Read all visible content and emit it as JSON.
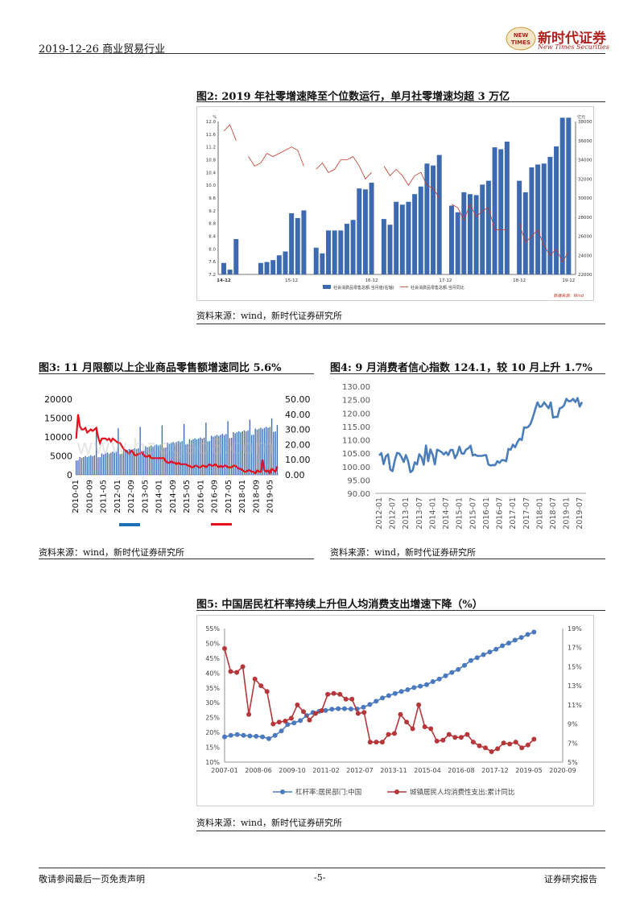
{
  "header": {
    "date_industry": "2019-12-26  商业贸易行业",
    "logo_cn": "新时代证券",
    "logo_en": "New Times Securities",
    "logo_badge": "NEW TIMES"
  },
  "fig2": {
    "title": "图2:    2019 年社零增速降至个位数运行，单月社零增速均超 3 万亿",
    "source": "资料来源：wind，新时代证券研究所",
    "inner_source": "数据来源：Wind",
    "chart_data": {
      "type": "bar",
      "left_axis": {
        "min": 7.2,
        "max": 12.0,
        "ticks": [
          "12.0",
          "11.6",
          "11.2",
          "10.8",
          "10.4",
          "10.0",
          "9.6",
          "9.2",
          "8.8",
          "8.4",
          "8.0",
          "7.6",
          "7.2"
        ],
        "unit_top": "%"
      },
      "right_axis": {
        "min": 22000,
        "max": 38000,
        "ticks": [
          "38000",
          "36000",
          "34000",
          "32000",
          "30000",
          "28000",
          "26000",
          "24000",
          "22000"
        ],
        "unit_top": "亿元"
      },
      "x_ticks": [
        "14-12",
        "15-12",
        "16-12",
        "17-12",
        "18-12",
        "19-12"
      ],
      "legend": [
        "社会消费品零售总额:当月值(右轴)",
        "社会消费品零售总额:当月同比"
      ],
      "bars": [
        23200,
        22500,
        25700,
        null,
        21900,
        21500,
        23200,
        23300,
        23500,
        24000,
        24400,
        28400,
        27900,
        28700,
        null,
        24800,
        24200,
        26600,
        26600,
        26600,
        27300,
        27700,
        31000,
        30900,
        31600,
        null,
        27800,
        27200,
        29600,
        29300,
        29600,
        30400,
        31200,
        33600,
        33400,
        34500,
        null,
        29200,
        28500,
        30600,
        30400,
        30300,
        31400,
        31800,
        35300,
        35100,
        35900,
        null,
        31800,
        30600,
        33200,
        33500,
        33600,
        34300,
        35400,
        38400,
        38400
      ],
      "line": [
        11.7,
        11.9,
        11.4,
        null,
        10.9,
        10.6,
        10.7,
        11.0,
        10.9,
        11.0,
        11.1,
        11.2,
        11.1,
        10.6,
        null,
        10.5,
        10.7,
        10.4,
        10.5,
        10.8,
        10.8,
        10.9,
        10.6,
        10.2,
        10.4,
        null,
        10.6,
        10.3,
        10.5,
        10.3,
        10.0,
        10.3,
        10.4,
        10.0,
        9.9,
        9.6,
        null,
        9.4,
        9.3,
        8.9,
        9.4,
        9.0,
        9.2,
        9.3,
        8.6,
        8.6,
        8.6,
        null,
        8.8,
        8.2,
        8.4,
        8.6,
        8.1,
        7.8,
        8.0,
        7.6,
        7.9
      ]
    }
  },
  "fig3": {
    "title": "图3:    11 月限额以上企业商品零售额增速同比 5.6%",
    "source": "资料来源：wind，新时代证券研究所",
    "watermark": "www.baogao8.com",
    "chart_data": {
      "type": "bar",
      "left_axis": {
        "min": 0,
        "max": 20000,
        "ticks": [
          "20000",
          "15000",
          "10000",
          "5000",
          "0"
        ]
      },
      "right_axis": {
        "min": 0,
        "max": 50,
        "ticks": [
          "50.00",
          "40.00",
          "30.00",
          "20.00",
          "10.00",
          "0.00"
        ]
      },
      "x_ticks": [
        "2010-01",
        "2010-09",
        "2011-05",
        "2012-01",
        "2012-09",
        "2013-05",
        "2014-01",
        "2014-09",
        "2015-05",
        "2016-01",
        "2016-09",
        "2017-05",
        "2018-01",
        "2018-09",
        "2019-05"
      ],
      "bars_monthly_summary": {
        "start": 4200,
        "end": 12800,
        "peak": 16500
      },
      "line": [
        24,
        40,
        32,
        30,
        30,
        31,
        28,
        29,
        30,
        29,
        30,
        31,
        25,
        21,
        24,
        24,
        24,
        23,
        24,
        22,
        24,
        23,
        22,
        21,
        21,
        19,
        17,
        16,
        15,
        14,
        16,
        15,
        13,
        13,
        14,
        14,
        15,
        13,
        12,
        12,
        13,
        11,
        11,
        11,
        11,
        11,
        11,
        11,
        11,
        9,
        8,
        8,
        9,
        8,
        8,
        7,
        8,
        7,
        7,
        7,
        7,
        6,
        6,
        5,
        5,
        6,
        6,
        5,
        5,
        6,
        6,
        5,
        6,
        7,
        6,
        6,
        7,
        6,
        5,
        6,
        5,
        6,
        6,
        5,
        5,
        5,
        6,
        6,
        5,
        4,
        4,
        3,
        2,
        2,
        3,
        3,
        2,
        2,
        1,
        3,
        2,
        2,
        10,
        3,
        2,
        3,
        1,
        4,
        3,
        2,
        5.6
      ]
    }
  },
  "fig4": {
    "title": "图4:    9 月消费者信心指数 124.1，较 10 月上升 1.7%",
    "source": "资料来源：wind，新时代证券研究所",
    "chart_data": {
      "type": "line",
      "y_axis": {
        "min": 90,
        "max": 130,
        "ticks": [
          "130.00",
          "125.00",
          "120.00",
          "115.00",
          "110.00",
          "105.00",
          "100.00",
          "95.00",
          "90.00"
        ]
      },
      "x_ticks": [
        "2012-01",
        "2012-07",
        "2013-01",
        "2013-07",
        "2014-01",
        "2014-07",
        "2015-01",
        "2015-07",
        "2016-01",
        "2016-07",
        "2017-01",
        "2017-07",
        "2018-01",
        "2018-07",
        "2019-01",
        "2019-07"
      ],
      "values": [
        104.2,
        105.0,
        100.9,
        103.8,
        104.6,
        98.9,
        98.3,
        102.2,
        105.1,
        104.9,
        103.6,
        101.7,
        104.3,
        102.0,
        97.9,
        98.5,
        101.6,
        100.8,
        104.6,
        103.5,
        100.7,
        107.9,
        102.0,
        106.4,
        104.4,
        100.8,
        106.3,
        105.9,
        105.4,
        104.5,
        105.4,
        104.3,
        106.2,
        106.2,
        103.1,
        104.6,
        107.4,
        104.9,
        104.8,
        106.4,
        106.8,
        107.8,
        104.1,
        104.5,
        104.0,
        104.0,
        104.0,
        104.2,
        104.3,
        100.8,
        100.4,
        100.6,
        100.5,
        102.0,
        101.4,
        102.4,
        102.4,
        102.0,
        106.6,
        106.3,
        108.2,
        107.2,
        109.1,
        110.4,
        109.9,
        114.6,
        114.5,
        114.9,
        116.1,
        118.6,
        121.3,
        124.0,
        122.3,
        122.6,
        124.0,
        122.9,
        121.8,
        124.0,
        118.3,
        118.6,
        118.5,
        121.8,
        122.1,
        122.9,
        125.3,
        124.4,
        124.5,
        125.3,
        124.1,
        125.6,
        122.4,
        124.1
      ]
    }
  },
  "fig5": {
    "title": "图5:    中国居民杠杆率持续上升但人均消费支出增速下降（%）",
    "source": "资料来源：wind，新时代证券研究所",
    "chart_data": {
      "type": "line",
      "left_axis": {
        "min": 10,
        "max": 55,
        "ticks": [
          "55%",
          "50%",
          "45%",
          "40%",
          "35%",
          "30%",
          "25%",
          "20%",
          "15%",
          "10%"
        ]
      },
      "right_axis": {
        "min": 5,
        "max": 19,
        "ticks": [
          "19%",
          "17%",
          "15%",
          "13%",
          "11%",
          "9%",
          "7%",
          "5%"
        ]
      },
      "x_ticks": [
        "2007-01",
        "2008-06",
        "2009-10",
        "2011-02",
        "2012-07",
        "2013-11",
        "2015-04",
        "2016-08",
        "2017-12",
        "2019-05",
        "2020-09"
      ],
      "series": [
        {
          "name": "杠杆率:居民部门:中国",
          "color": "#4a79bf",
          "values": [
            18.5,
            19.0,
            19.3,
            19.0,
            18.8,
            18.7,
            18.5,
            17.9,
            19.0,
            20.5,
            22.7,
            23.2,
            24.0,
            25.7,
            26.7,
            27.1,
            27.4,
            27.8,
            28.0,
            28.0,
            27.9,
            27.9,
            28.5,
            29.4,
            30.5,
            31.6,
            32.4,
            33.1,
            33.8,
            34.4,
            35.1,
            35.6,
            36.1,
            37.1,
            38.0,
            39.1,
            40.2,
            41.2,
            42.6,
            44.2,
            45.2,
            46.2,
            47.1,
            48.0,
            49.2,
            50.1,
            51.1,
            52.0,
            53.0,
            53.8
          ]
        },
        {
          "name": "城镇居民人均消费性支出:累计同比",
          "color": "#b5373a",
          "values": [
            16.9,
            14.5,
            14.4,
            15.0,
            10.0,
            13.7,
            13.0,
            12.4,
            9.0,
            9.2,
            9.3,
            9.6,
            11.0,
            10.3,
            9.4,
            10.1,
            10.4,
            12.1,
            12.2,
            12.1,
            11.6,
            11.6,
            10.1,
            10.2,
            7.1,
            7.1,
            7.1,
            7.9,
            8.0,
            10.0,
            9.2,
            8.5,
            11.0,
            8.7,
            8.5,
            7.2,
            7.3,
            7.9,
            7.6,
            7.6,
            7.9,
            7.1,
            6.7,
            6.5,
            6.1,
            6.4,
            7.0,
            6.9,
            7.1,
            6.5,
            6.8,
            7.4
          ]
        }
      ],
      "x_range": [
        "2007-01",
        "2020-09"
      ]
    }
  },
  "footer": {
    "left": "敬请参阅最后一页免责声明",
    "page": "-5-",
    "right": "证券研究报告"
  }
}
